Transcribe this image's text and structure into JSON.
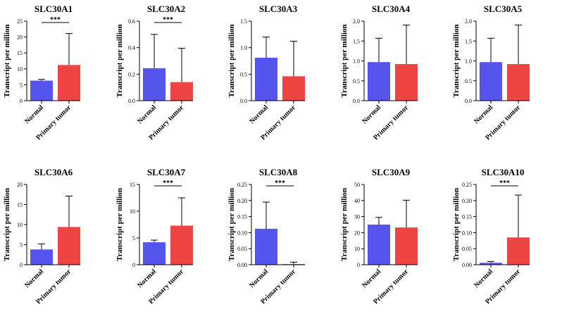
{
  "chart_data": [
    {
      "type": "bar",
      "title": "SLC30A1",
      "ylabel": "Transcript per million",
      "categories": [
        "Normal",
        "Primary tumor"
      ],
      "values": [
        6.3,
        11.2
      ],
      "errors": [
        0.4,
        9.9
      ],
      "colors": [
        "#5555ee",
        "#ee4444"
      ],
      "ylim": [
        0,
        25
      ],
      "yticks": [
        "0",
        "5",
        "10",
        "15",
        "20",
        "25"
      ],
      "significance": "***"
    },
    {
      "type": "bar",
      "title": "SLC30A2",
      "ylabel": "Transcript per million",
      "categories": [
        "Normal",
        "Primary tumor"
      ],
      "values": [
        0.245,
        0.14
      ],
      "errors": [
        0.255,
        0.255
      ],
      "colors": [
        "#5555ee",
        "#ee4444"
      ],
      "ylim": [
        0,
        0.6
      ],
      "yticks": [
        "0.0",
        "0.2",
        "0.4",
        "0.6"
      ],
      "significance": "***"
    },
    {
      "type": "bar",
      "title": "SLC30A3",
      "ylabel": "Transcript per million",
      "categories": [
        "Normal",
        "Primary tumor"
      ],
      "values": [
        0.81,
        0.46
      ],
      "errors": [
        0.39,
        0.66
      ],
      "colors": [
        "#5555ee",
        "#ee4444"
      ],
      "ylim": [
        0,
        1.5
      ],
      "yticks": [
        "0.0",
        "0.5",
        "1.0",
        "1.5"
      ],
      "significance": ""
    },
    {
      "type": "bar",
      "title": "SLC30A4",
      "ylabel": "Transcript per million",
      "categories": [
        "Normal",
        "Primary tumor"
      ],
      "values": [
        0.97,
        0.92
      ],
      "errors": [
        0.6,
        0.98
      ],
      "colors": [
        "#5555ee",
        "#ee4444"
      ],
      "ylim": [
        0,
        2.0
      ],
      "yticks": [
        "0.0",
        "0.5",
        "1.0",
        "1.5",
        "2.0"
      ],
      "significance": ""
    },
    {
      "type": "bar",
      "title": "SLC30A5",
      "ylabel": "Transcript per million",
      "categories": [
        "Normal",
        "Primary tumor"
      ],
      "values": [
        0.97,
        0.92
      ],
      "errors": [
        0.6,
        0.98
      ],
      "colors": [
        "#5555ee",
        "#ee4444"
      ],
      "ylim": [
        0,
        2.0
      ],
      "yticks": [
        "0.0",
        "0.5",
        "1.0",
        "1.5",
        "2.0"
      ],
      "significance": ""
    },
    {
      "type": "bar",
      "title": "SLC30A6",
      "ylabel": "Transcript per million",
      "categories": [
        "Normal",
        "Primary tumor"
      ],
      "values": [
        3.8,
        9.4
      ],
      "errors": [
        1.4,
        7.7
      ],
      "colors": [
        "#5555ee",
        "#ee4444"
      ],
      "ylim": [
        0,
        20
      ],
      "yticks": [
        "0",
        "5",
        "10",
        "15",
        "20"
      ],
      "significance": ""
    },
    {
      "type": "bar",
      "title": "SLC30A7",
      "ylabel": "Transcript per million",
      "categories": [
        "Normal",
        "Primary tumor"
      ],
      "values": [
        4.2,
        7.3
      ],
      "errors": [
        0.4,
        5.2
      ],
      "colors": [
        "#5555ee",
        "#ee4444"
      ],
      "ylim": [
        0,
        15
      ],
      "yticks": [
        "0",
        "5",
        "10",
        "15"
      ],
      "significance": "***"
    },
    {
      "type": "bar",
      "title": "SLC30A8",
      "ylabel": "Transcript per million",
      "categories": [
        "Normal",
        "Primary tumor"
      ],
      "values": [
        0.112,
        0.002
      ],
      "errors": [
        0.083,
        0.006
      ],
      "colors": [
        "#5555ee",
        "#ee4444"
      ],
      "ylim": [
        0,
        0.25
      ],
      "yticks": [
        "0.00",
        "0.05",
        "0.10",
        "0.15",
        "0.20",
        "0.25"
      ],
      "significance": "***"
    },
    {
      "type": "bar",
      "title": "SLC30A9",
      "ylabel": "Transcript per million",
      "categories": [
        "Normal",
        "Primary tumor"
      ],
      "values": [
        25,
        23.2
      ],
      "errors": [
        4.5,
        17
      ],
      "colors": [
        "#5555ee",
        "#ee4444"
      ],
      "ylim": [
        0,
        50
      ],
      "yticks": [
        "0",
        "10",
        "20",
        "30",
        "40",
        "50"
      ],
      "significance": ""
    },
    {
      "type": "bar",
      "title": "SLC30A10",
      "ylabel": "Transcript per million",
      "categories": [
        "Normal",
        "Primary tumor"
      ],
      "values": [
        0.006,
        0.085
      ],
      "errors": [
        0.004,
        0.132
      ],
      "colors": [
        "#5555ee",
        "#ee4444"
      ],
      "ylim": [
        0,
        0.25
      ],
      "yticks": [
        "0.00",
        "0.05",
        "0.10",
        "0.15",
        "0.20",
        "0.25"
      ],
      "significance": "***"
    }
  ]
}
